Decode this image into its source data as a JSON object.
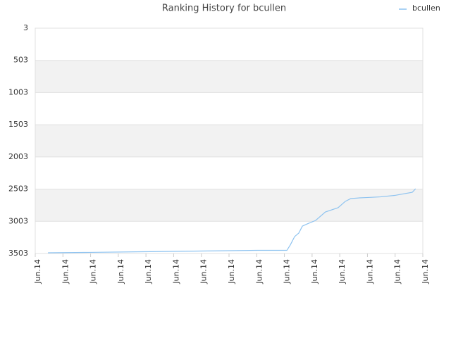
{
  "chart_data": {
    "type": "line",
    "title": "Ranking History for bcullen",
    "series": [
      {
        "name": "bcullen",
        "color": "#8ec3f0",
        "x": [
          0.46,
          1.78,
          3.87,
          5.98,
          8.02,
          9.09,
          9.21,
          9.37,
          9.52,
          9.65,
          9.82,
          10.13,
          10.48,
          10.94,
          11.2,
          11.4,
          11.71,
          11.96,
          12.47,
          12.98,
          13.62,
          13.74
        ],
        "values": [
          3492,
          3487,
          3476,
          3465,
          3454,
          3454,
          3372,
          3240,
          3186,
          3077,
          3044,
          2989,
          2858,
          2792,
          2693,
          2650,
          2639,
          2634,
          2623,
          2601,
          2552,
          2497
        ]
      }
    ],
    "xlim": [
      0,
      14
    ],
    "xticks": [
      {
        "value": 0,
        "label": "Jun.14"
      },
      {
        "value": 1,
        "label": "Jun.14"
      },
      {
        "value": 2,
        "label": "Jun.14"
      },
      {
        "value": 3,
        "label": "Jun.14"
      },
      {
        "value": 4,
        "label": "Jun.14"
      },
      {
        "value": 5,
        "label": "Jun.14"
      },
      {
        "value": 6,
        "label": "Jun.14"
      },
      {
        "value": 7,
        "label": "Jun.14"
      },
      {
        "value": 8,
        "label": "Jun.14"
      },
      {
        "value": 9,
        "label": "Jun.14"
      },
      {
        "value": 10,
        "label": "Jun.14"
      },
      {
        "value": 11,
        "label": "Jun.14"
      },
      {
        "value": 12,
        "label": "Jun.14"
      },
      {
        "value": 13,
        "label": "Jun.14"
      },
      {
        "value": 14,
        "label": "Jun.14"
      }
    ],
    "ylim": [
      3503,
      3
    ],
    "yticks": [
      3,
      503,
      1003,
      1503,
      2003,
      2503,
      3003,
      3503
    ],
    "grid": true,
    "bands": true,
    "legend": "top-right"
  }
}
